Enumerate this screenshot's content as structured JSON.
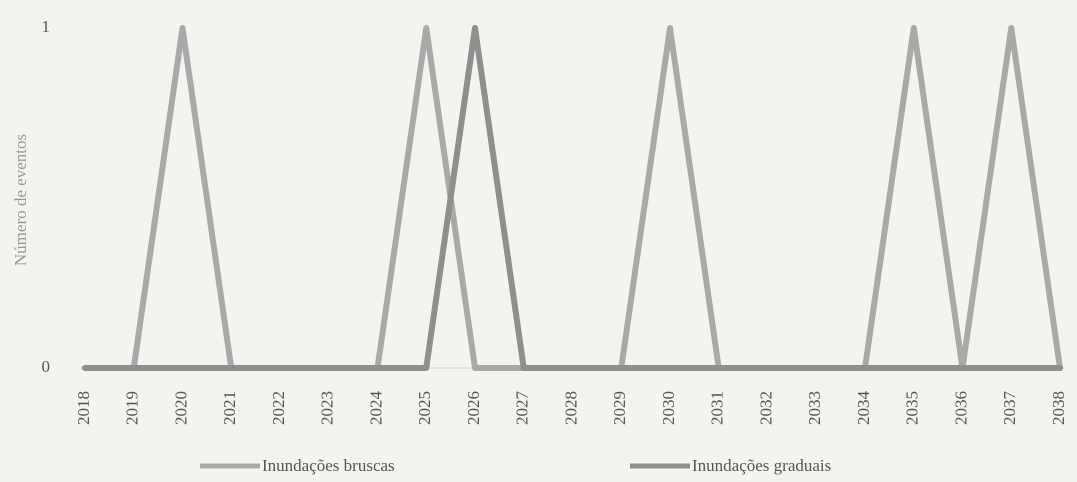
{
  "chart_data": {
    "type": "line",
    "y_label": "Número de eventos",
    "categories": [
      "2018",
      "2019",
      "2020",
      "2021",
      "2022",
      "2023",
      "2024",
      "2025",
      "2026",
      "2027",
      "2028",
      "2029",
      "2030",
      "2031",
      "2032",
      "2033",
      "2034",
      "2035",
      "2036",
      "2037",
      "2038"
    ],
    "series": [
      {
        "name": "Inundações bruscas",
        "color": "#a9a9a9",
        "values": [
          0,
          0,
          1,
          0,
          0,
          0,
          0,
          1,
          0,
          0,
          0,
          0,
          1,
          0,
          0,
          0,
          0,
          1,
          0,
          1,
          0
        ]
      },
      {
        "name": "Inundações graduais",
        "color": "#8f8f8f",
        "values": [
          0,
          0,
          0,
          0,
          0,
          0,
          0,
          0,
          1,
          0,
          0,
          0,
          0,
          0,
          0,
          0,
          0,
          0,
          0,
          0,
          0
        ]
      }
    ],
    "ylim": [
      0,
      1
    ],
    "yticks": [
      0,
      1
    ],
    "grid": false
  }
}
